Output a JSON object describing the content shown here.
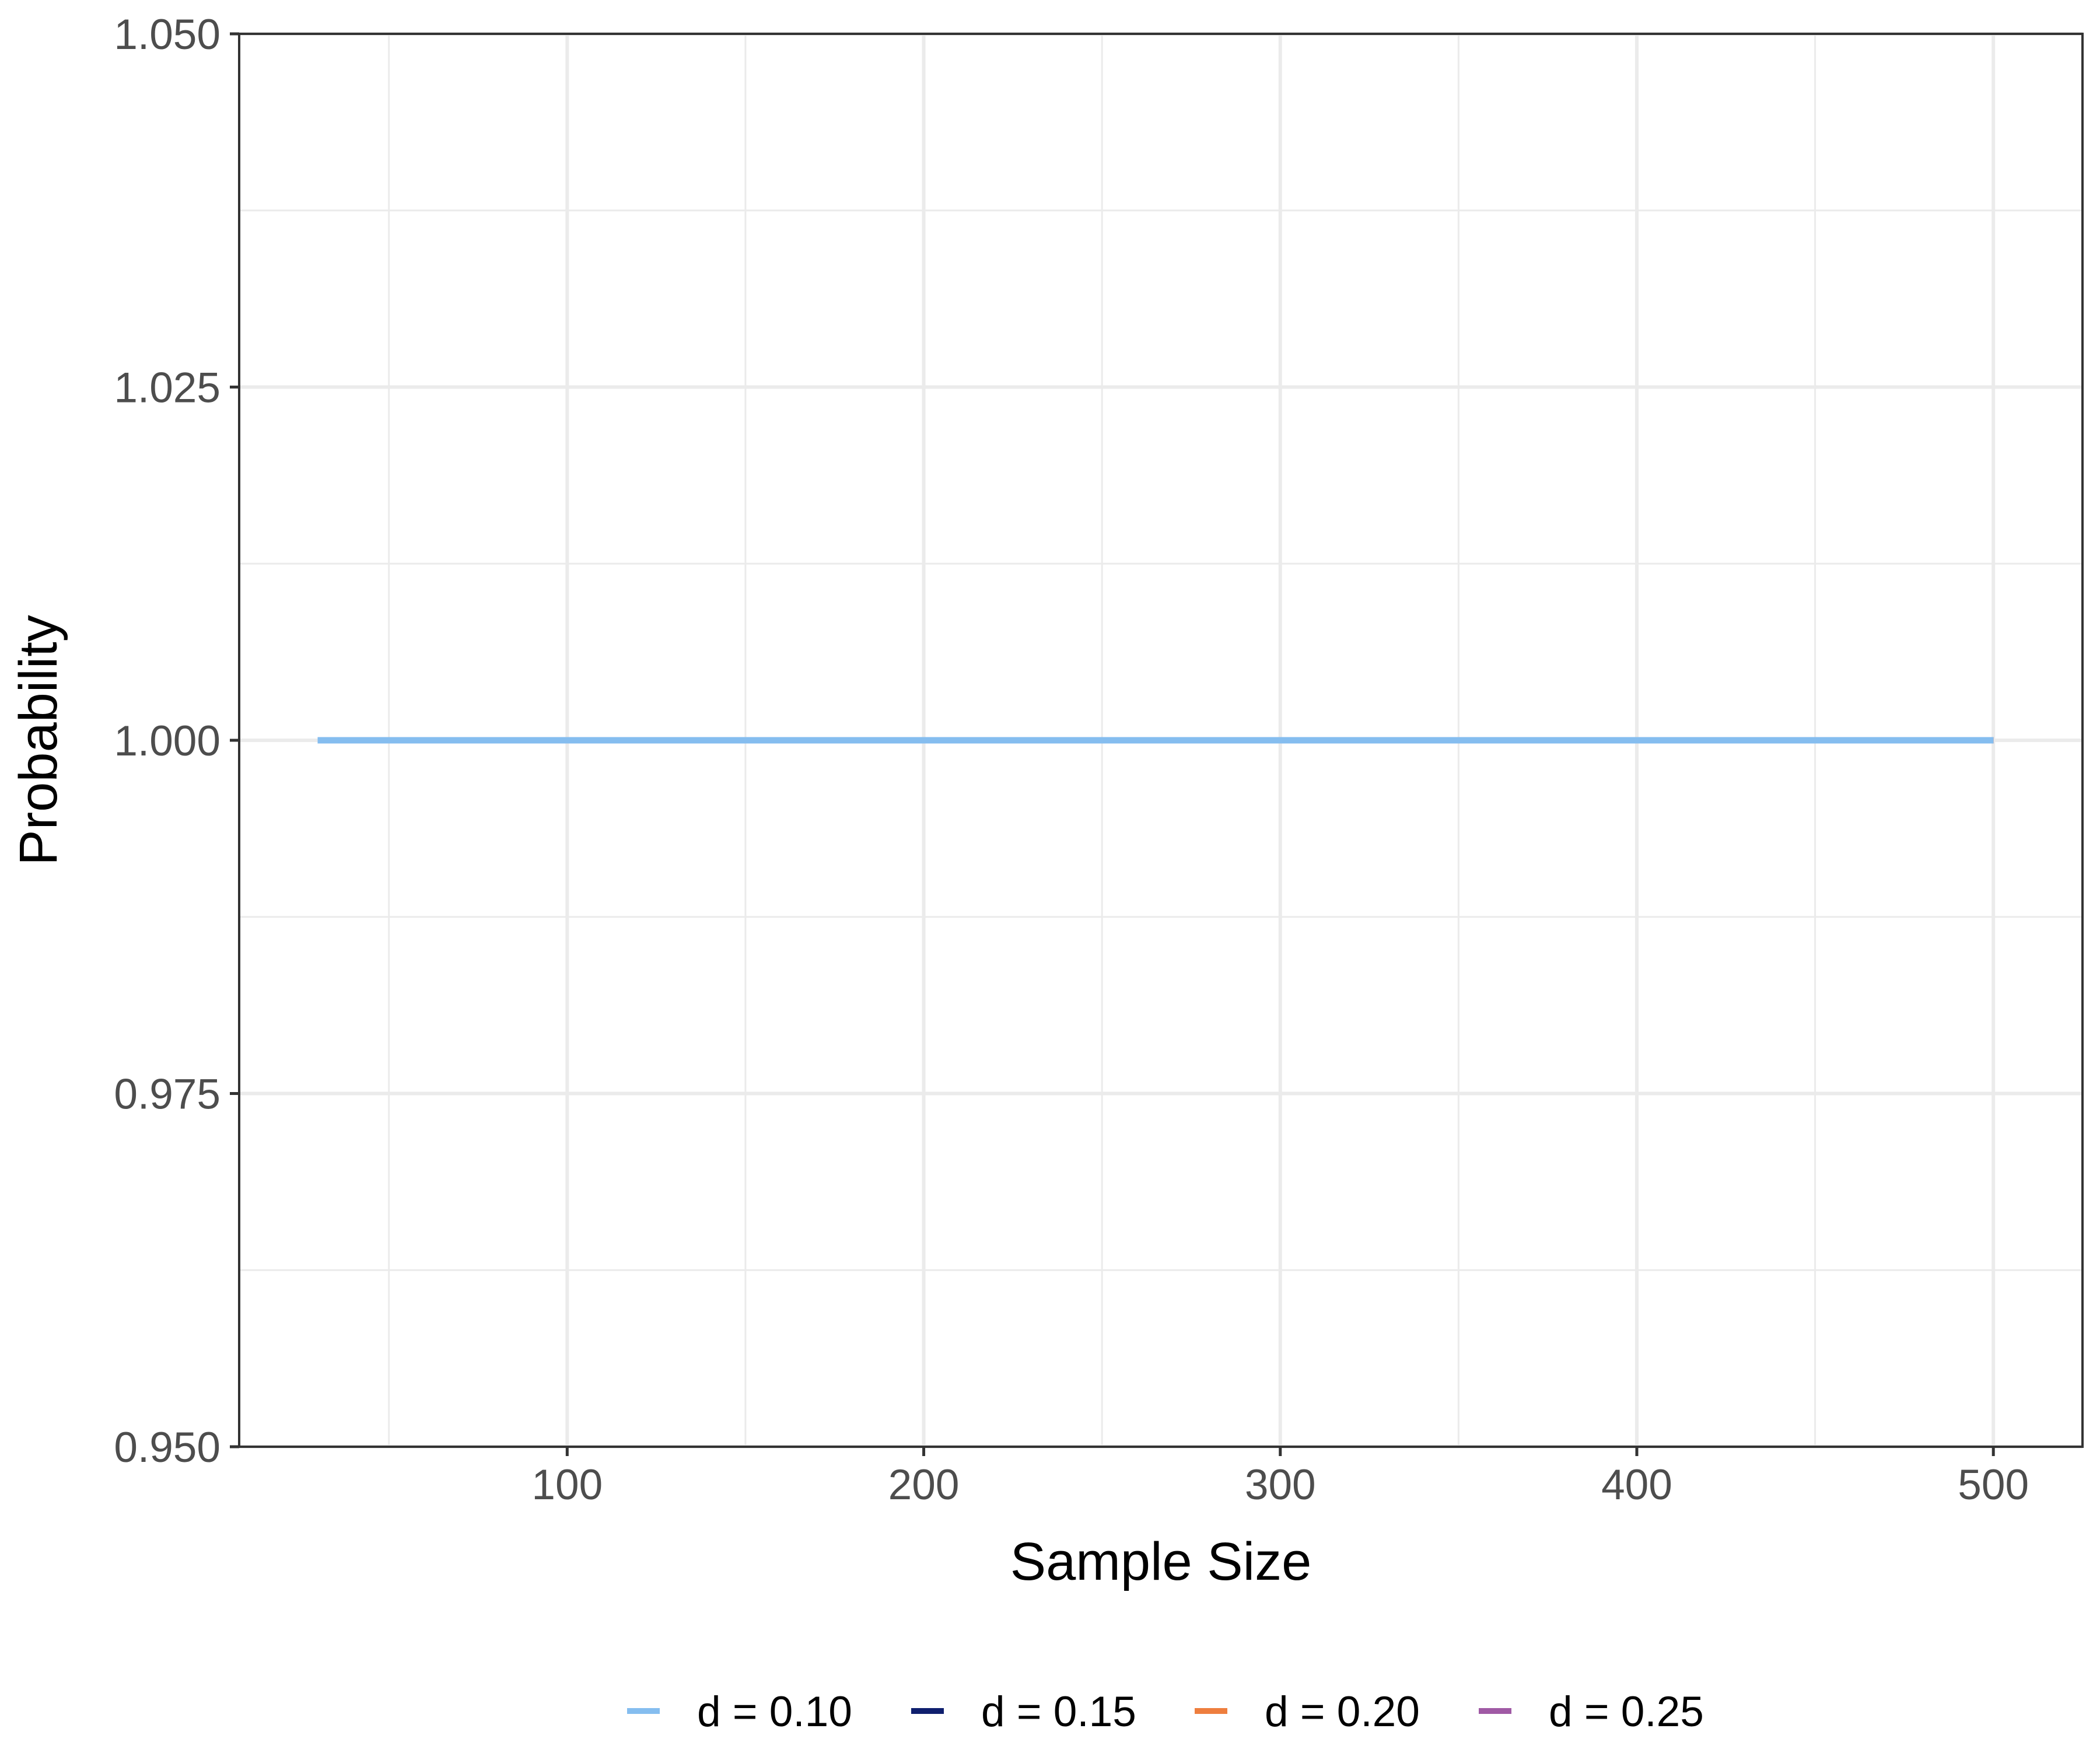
{
  "chart_data": {
    "type": "line",
    "title": "",
    "xlabel": "Sample Size",
    "ylabel": "Probability",
    "xlim": [
      8,
      525
    ],
    "ylim": [
      0.95,
      1.05
    ],
    "x_ticks": [
      100,
      200,
      300,
      400,
      500
    ],
    "x_tick_labels": [
      "100",
      "200",
      "300",
      "400",
      "500"
    ],
    "x_minor_ticks": [
      50,
      150,
      250,
      350,
      450
    ],
    "y_ticks": [
      0.95,
      0.975,
      1.0,
      1.025,
      1.05
    ],
    "y_tick_labels": [
      "0.950",
      "0.975",
      "1.000",
      "1.025",
      "1.050"
    ],
    "y_minor_ticks": [
      0.9625,
      0.9875,
      1.0125,
      1.0375
    ],
    "grid": true,
    "legend_position": "bottom",
    "colors": {
      "d_010": "#85BDEF",
      "d_015": "#0F1F6E",
      "d_020": "#EE7E3E",
      "d_025": "#A05AA5",
      "grid": "#EBEBEB",
      "panel_border": "#333333",
      "tick_text": "#4D4D4D",
      "axis_title": "#000000"
    },
    "series": [
      {
        "name": "d = 0.10",
        "color": "#85BDEF",
        "x": [
          30,
          100,
          200,
          300,
          400,
          500
        ],
        "y": [
          1.0,
          1.0,
          1.0,
          1.0,
          1.0,
          1.0
        ]
      },
      {
        "name": "d = 0.15",
        "color": "#0F1F6E",
        "x": [
          30,
          100,
          200,
          300,
          400,
          500
        ],
        "y": [
          1.0,
          1.0,
          1.0,
          1.0,
          1.0,
          1.0
        ]
      },
      {
        "name": "d = 0.20",
        "color": "#EE7E3E",
        "x": [
          30,
          100,
          200,
          300,
          400,
          500
        ],
        "y": [
          1.0,
          1.0,
          1.0,
          1.0,
          1.0,
          1.0
        ]
      },
      {
        "name": "d = 0.25",
        "color": "#A05AA5",
        "x": [
          30,
          100,
          200,
          300,
          400,
          500
        ],
        "y": [
          1.0,
          1.0,
          1.0,
          1.0,
          1.0,
          1.0
        ]
      }
    ],
    "draw_order": [
      3,
      2,
      1,
      0
    ]
  }
}
